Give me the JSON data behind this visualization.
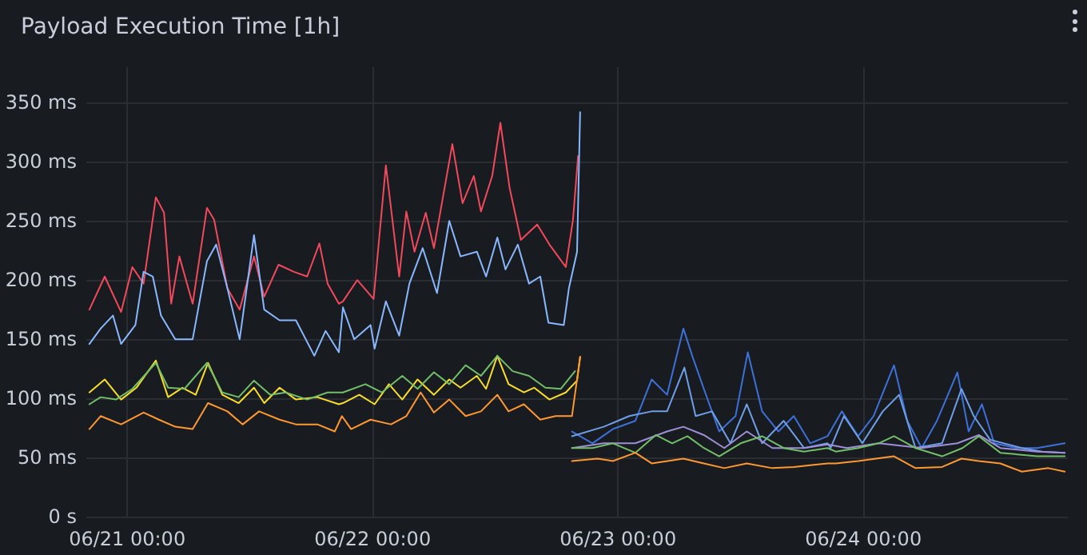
{
  "chart_data": {
    "type": "line",
    "title": "Payload Execution Time [1h]",
    "marker": "none",
    "line_style": "solid",
    "grid": true,
    "xlim": [
      "--06-20T20:00",
      "--06-24T20:00"
    ],
    "xticks": [
      {
        "value": "--06-21T00:00",
        "label": "06/21 00:00"
      },
      {
        "value": "--06-22T00:00",
        "label": "06/22 00:00"
      },
      {
        "value": "--06-23T00:00",
        "label": "06/23 00:00"
      },
      {
        "value": "--06-24T00:00",
        "label": "06/24 00:00"
      }
    ],
    "ylim": [
      0,
      380
    ],
    "yticks": [
      {
        "value": 0,
        "label": "0 s"
      },
      {
        "value": 50,
        "label": "50 ms"
      },
      {
        "value": 100,
        "label": "100 ms"
      },
      {
        "value": 150,
        "label": "150 ms"
      },
      {
        "value": 200,
        "label": "200 ms"
      },
      {
        "value": 250,
        "label": "250 ms"
      },
      {
        "value": 300,
        "label": "300 ms"
      },
      {
        "value": 350,
        "label": "350 ms"
      }
    ],
    "series": [
      {
        "color": "#f2495c",
        "x": [
          "--06-20T20:18",
          "--06-20T21:48",
          "--06-20T23:24",
          "--06-21T00:30",
          "--06-21T01:36",
          "--06-21T02:48",
          "--06-21T03:36",
          "--06-21T04:18",
          "--06-21T05:06",
          "--06-21T06:24",
          "--06-21T07:48",
          "--06-21T08:30",
          "--06-21T09:48",
          "--06-21T11:00",
          "--06-21T12:24",
          "--06-21T13:24",
          "--06-21T14:48",
          "--06-21T16:18",
          "--06-21T17:36",
          "--06-21T18:48",
          "--06-21T19:36",
          "--06-21T20:42",
          "--06-21T21:06",
          "--06-21T22:30",
          "--06-22T00:06",
          "--06-22T01:18",
          "--06-22T02:36",
          "--06-22T03:18",
          "--06-22T04:06",
          "--06-22T05:12",
          "--06-22T06:00",
          "--06-22T07:48",
          "--06-22T08:48",
          "--06-22T09:54",
          "--06-22T10:36",
          "--06-22T11:42",
          "--06-22T12:30",
          "--06-22T13:24",
          "--06-22T14:30",
          "--06-22T16:06",
          "--06-22T17:18",
          "--06-22T18:54",
          "--06-22T19:36",
          "--06-22T20:06"
        ],
        "values": [
          175,
          203,
          173,
          211,
          197,
          270,
          257,
          180,
          220,
          180,
          261,
          251,
          193,
          175,
          220,
          186,
          213,
          207,
          203,
          231,
          197,
          180,
          182,
          200,
          184,
          297,
          203,
          258,
          224,
          257,
          227,
          315,
          265,
          288,
          258,
          288,
          333,
          278,
          234,
          247,
          230,
          211,
          251,
          305
        ]
      },
      {
        "color": "#8ab8ff",
        "x": [
          "--06-20T20:18",
          "--06-20T21:24",
          "--06-20T22:36",
          "--06-20T23:24",
          "--06-21T00:48",
          "--06-21T01:36",
          "--06-21T02:30",
          "--06-21T03:18",
          "--06-21T04:42",
          "--06-21T06:24",
          "--06-21T07:48",
          "--06-21T08:42",
          "--06-21T09:48",
          "--06-21T11:00",
          "--06-21T12:24",
          "--06-21T13:24",
          "--06-21T14:54",
          "--06-21T16:30",
          "--06-21T18:18",
          "--06-21T19:24",
          "--06-21T20:42",
          "--06-21T21:06",
          "--06-21T22:12",
          "--06-21T23:48",
          "--06-22T00:12",
          "--06-22T01:18",
          "--06-22T02:36",
          "--06-22T03:36",
          "--06-22T04:54",
          "--06-22T06:18",
          "--06-22T07:30",
          "--06-22T08:36",
          "--06-22T10:12",
          "--06-22T11:06",
          "--06-22T12:12",
          "--06-22T13:00",
          "--06-22T14:12",
          "--06-22T15:18",
          "--06-22T16:24",
          "--06-22T17:12",
          "--06-22T18:42",
          "--06-22T19:12",
          "--06-22T20:00",
          "--06-22T20:18"
        ],
        "values": [
          146,
          159,
          170,
          146,
          162,
          207,
          203,
          170,
          150,
          150,
          216,
          230,
          193,
          150,
          238,
          175,
          166,
          166,
          136,
          157,
          139,
          177,
          150,
          162,
          142,
          182,
          153,
          197,
          227,
          189,
          250,
          220,
          224,
          203,
          236,
          209,
          230,
          197,
          203,
          164,
          162,
          193,
          224,
          342
        ]
      },
      {
        "color": "#fade2a",
        "x": [
          "--06-20T20:18",
          "--06-20T21:48",
          "--06-20T23:24",
          "--06-21T00:54",
          "--06-21T02:48",
          "--06-21T04:00",
          "--06-21T05:24",
          "--06-21T06:42",
          "--06-21T07:54",
          "--06-21T09:18",
          "--06-21T10:54",
          "--06-21T12:24",
          "--06-21T13:24",
          "--06-21T14:54",
          "--06-21T16:30",
          "--06-21T18:36",
          "--06-21T20:42",
          "--06-21T21:06",
          "--06-21T22:42",
          "--06-22T00:12",
          "--06-22T01:36",
          "--06-22T02:54",
          "--06-22T04:24",
          "--06-22T06:00",
          "--06-22T07:30",
          "--06-22T08:36",
          "--06-22T10:12",
          "--06-22T11:06",
          "--06-22T12:12",
          "--06-22T13:18",
          "--06-22T14:48",
          "--06-22T15:48",
          "--06-22T17:18",
          "--06-22T18:54",
          "--06-22T20:00",
          "--06-22T20:18"
        ],
        "values": [
          105,
          116,
          99,
          109,
          132,
          101,
          109,
          103,
          130,
          103,
          96,
          109,
          96,
          109,
          99,
          101,
          95,
          96,
          103,
          95,
          112,
          99,
          116,
          103,
          116,
          109,
          119,
          108,
          136,
          112,
          105,
          109,
          99,
          105,
          115,
          135
        ]
      },
      {
        "color": "#73bf69",
        "x": [
          "--06-20T20:18",
          "--06-20T21:24",
          "--06-20T22:54",
          "--06-21T00:30",
          "--06-21T02:48",
          "--06-21T04:00",
          "--06-21T05:36",
          "--06-21T07:48",
          "--06-21T09:18",
          "--06-21T10:54",
          "--06-21T12:24",
          "--06-21T14:00",
          "--06-21T15:30",
          "--06-21T17:36",
          "--06-21T19:36",
          "--06-21T21:06",
          "--06-21T23:18",
          "--06-22T00:54",
          "--06-22T02:54",
          "--06-22T04:24",
          "--06-22T06:00",
          "--06-22T07:30",
          "--06-22T09:06",
          "--06-22T10:36",
          "--06-22T12:12",
          "--06-22T13:42",
          "--06-22T15:18",
          "--06-22T16:54",
          "--06-22T18:24",
          "--06-22T19:48"
        ],
        "values": [
          95,
          101,
          99,
          108,
          130,
          109,
          108,
          130,
          105,
          101,
          115,
          103,
          105,
          99,
          105,
          105,
          112,
          105,
          119,
          108,
          122,
          112,
          128,
          119,
          136,
          123,
          119,
          109,
          108,
          123
        ]
      },
      {
        "color": "#ff9830",
        "x": [
          "--06-20T20:18",
          "--06-20T21:24",
          "--06-20T23:24",
          "--06-21T01:36",
          "--06-21T03:06",
          "--06-21T04:42",
          "--06-21T06:24",
          "--06-21T07:54",
          "--06-21T09:48",
          "--06-21T11:18",
          "--06-21T12:54",
          "--06-21T14:54",
          "--06-21T16:30",
          "--06-21T18:36",
          "--06-21T20:18",
          "--06-21T21:00",
          "--06-21T21:54",
          "--06-21T23:48",
          "--06-22T01:48",
          "--06-22T03:18",
          "--06-22T04:42",
          "--06-22T06:00",
          "--06-22T07:30",
          "--06-22T09:06",
          "--06-22T10:36",
          "--06-22T12:12",
          "--06-22T13:18",
          "--06-22T14:48",
          "--06-22T16:24",
          "--06-22T17:54",
          "--06-22T19:30",
          "--06-22T20:18"
        ],
        "values": [
          74,
          85,
          78,
          88,
          82,
          76,
          74,
          96,
          89,
          78,
          89,
          82,
          78,
          78,
          72,
          85,
          74,
          82,
          78,
          85,
          105,
          88,
          99,
          85,
          89,
          103,
          89,
          95,
          82,
          85,
          85,
          135
        ]
      },
      {
        "color": "#3d71d9",
        "x": [
          "--06-22T19:30",
          "--06-22T21:30",
          "--06-22T23:30",
          "--06-23T01:42",
          "--06-23T03:18",
          "--06-23T04:48",
          "--06-23T06:24",
          "--06-23T07:18",
          "--06-23T08:24",
          "--06-23T09:54",
          "--06-23T11:30",
          "--06-23T12:42",
          "--06-23T14:06",
          "--06-23T15:42",
          "--06-23T17:12",
          "--06-23T18:48",
          "--06-23T20:30",
          "--06-23T21:54",
          "--06-23T23:30",
          "--06-24T01:00",
          "--06-24T03:00",
          "--06-24T04:18",
          "--06-24T05:42",
          "--06-24T07:12",
          "--06-24T09:12",
          "--06-24T10:18",
          "--06-24T11:36",
          "--06-24T12:48",
          "--06-24T15:00",
          "--06-24T17:00",
          "--06-24T19:42"
        ],
        "values": [
          72,
          62,
          74,
          81,
          116,
          103,
          159,
          135,
          108,
          72,
          85,
          139,
          89,
          72,
          85,
          62,
          68,
          89,
          68,
          85,
          128,
          81,
          58,
          81,
          122,
          72,
          95,
          62,
          58,
          58,
          62
        ]
      },
      {
        "color": "#6e9fe8",
        "x": [
          "--06-22T19:30",
          "--06-22T22:36",
          "--06-23T01:06",
          "--06-23T03:18",
          "--06-23T04:48",
          "--06-23T06:30",
          "--06-23T07:36",
          "--06-23T09:12",
          "--06-23T11:00",
          "--06-23T12:36",
          "--06-23T14:06",
          "--06-23T16:12",
          "--06-23T18:12",
          "--06-23T20:30",
          "--06-23T20:48",
          "--06-23T22:06",
          "--06-23T23:54",
          "--06-24T01:54",
          "--06-24T03:30",
          "--06-24T05:06",
          "--06-24T07:42",
          "--06-24T09:36",
          "--06-24T10:48",
          "--06-24T12:24",
          "--06-24T15:30",
          "--06-24T17:30",
          "--06-24T19:42"
        ],
        "values": [
          68,
          76,
          85,
          89,
          89,
          126,
          85,
          89,
          62,
          95,
          62,
          81,
          58,
          62,
          58,
          85,
          62,
          89,
          103,
          58,
          62,
          108,
          85,
          65,
          58,
          55,
          54
        ]
      },
      {
        "color": "#9d8fd9",
        "x": [
          "--06-22T19:30",
          "--06-22T22:36",
          "--06-23T01:42",
          "--06-23T04:48",
          "--06-23T06:24",
          "--06-23T08:24",
          "--06-23T10:24",
          "--06-23T12:36",
          "--06-23T15:06",
          "--06-23T18:12",
          "--06-23T20:30",
          "--06-23T22:24",
          "--06-24T01:30",
          "--06-24T05:42",
          "--06-24T09:12",
          "--06-24T11:18",
          "--06-24T13:24",
          "--06-24T17:00",
          "--06-24T19:42"
        ],
        "values": [
          58,
          62,
          62,
          72,
          76,
          69,
          58,
          72,
          58,
          58,
          61,
          58,
          62,
          58,
          62,
          69,
          58,
          55,
          54
        ]
      },
      {
        "color": "#73bf69",
        "x": [
          "--06-22T19:30",
          "--06-22T21:30",
          "--06-22T23:30",
          "--06-23T01:42",
          "--06-23T03:42",
          "--06-23T05:18",
          "--06-23T06:48",
          "--06-23T08:24",
          "--06-23T09:54",
          "--06-23T12:00",
          "--06-23T14:06",
          "--06-23T16:12",
          "--06-23T18:12",
          "--06-23T20:30",
          "--06-23T21:18",
          "--06-23T23:30",
          "--06-24T01:30",
          "--06-24T03:00",
          "--06-24T05:06",
          "--06-24T07:42",
          "--06-24T09:42",
          "--06-24T11:18",
          "--06-24T13:24",
          "--06-24T17:00",
          "--06-24T19:42"
        ],
        "values": [
          58,
          58,
          62,
          54,
          69,
          62,
          68,
          58,
          51,
          62,
          68,
          58,
          55,
          58,
          55,
          58,
          62,
          68,
          58,
          51,
          58,
          68,
          54,
          51,
          51
        ]
      },
      {
        "color": "#ff9830",
        "x": [
          "--06-22T19:30",
          "--06-22T22:00",
          "--06-22T23:30",
          "--06-23T01:42",
          "--06-23T03:18",
          "--06-23T06:24",
          "--06-23T08:24",
          "--06-23T10:24",
          "--06-23T12:36",
          "--06-23T15:06",
          "--06-23T17:12",
          "--06-23T20:30",
          "--06-23T21:18",
          "--06-23T23:30",
          "--06-24T03:00",
          "--06-24T05:06",
          "--06-24T07:42",
          "--06-24T09:36",
          "--06-24T11:18",
          "--06-24T13:24",
          "--06-24T15:30",
          "--06-24T18:06",
          "--06-24T19:42"
        ],
        "values": [
          47,
          49,
          47,
          54,
          45,
          49,
          45,
          41,
          45,
          41,
          42,
          45,
          45,
          47,
          51,
          41,
          42,
          49,
          47,
          45,
          38,
          41,
          38
        ]
      }
    ]
  }
}
